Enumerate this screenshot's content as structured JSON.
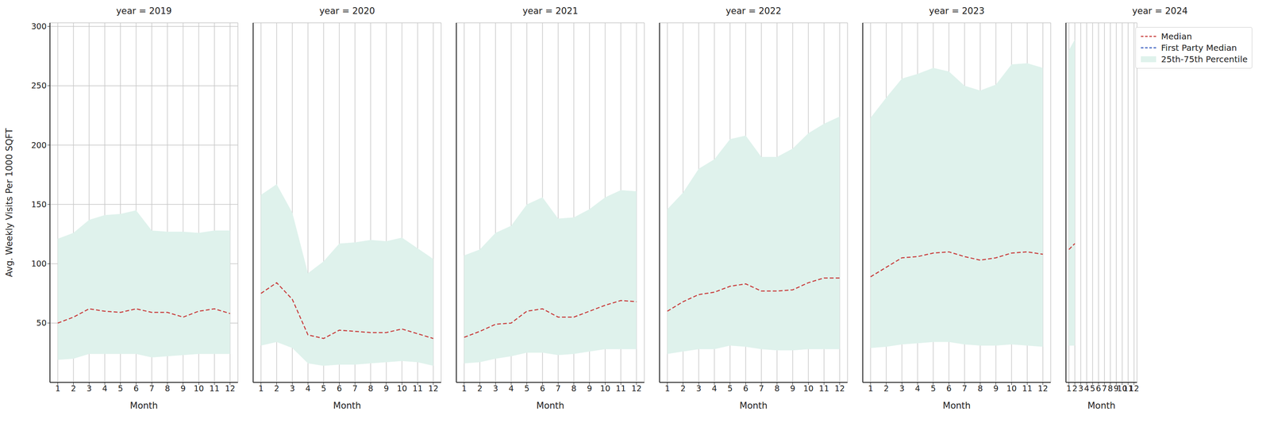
{
  "chart_data": [
    {
      "type": "line",
      "title": "year = 2019",
      "x_label": "Month",
      "y_label": "Avg. Weekly Visits Per 1000 SQFT",
      "x": [
        1,
        2,
        3,
        4,
        5,
        6,
        7,
        8,
        9,
        10,
        11,
        12
      ],
      "xlim": [
        0.5,
        12.5
      ],
      "xticks": [
        1,
        2,
        3,
        4,
        5,
        6,
        7,
        8,
        9,
        10,
        11,
        12
      ],
      "ylim": [
        0,
        303
      ],
      "yticks": [
        50,
        100,
        150,
        200,
        250,
        300
      ],
      "grid": true,
      "series": [
        {
          "name": "Median",
          "type": "line",
          "color": "#c9403f",
          "line_style": "dashed",
          "values": [
            50,
            55,
            62,
            60,
            59,
            62,
            59,
            59,
            55,
            60,
            62,
            58
          ]
        },
        {
          "name": "First Party Median",
          "type": "line",
          "color": "#3b5fc0",
          "line_style": "dashed",
          "values": [
            null,
            null,
            null,
            null,
            null,
            null,
            null,
            null,
            null,
            null,
            null,
            null
          ]
        },
        {
          "name": "25th-75th Percentile",
          "type": "area",
          "color": "#dff2ec",
          "lower": [
            19,
            20,
            24,
            24,
            24,
            24,
            21,
            22,
            23,
            24,
            24,
            24
          ],
          "upper": [
            121,
            126,
            137,
            141,
            142,
            145,
            128,
            127,
            127,
            126,
            128,
            128
          ]
        }
      ]
    },
    {
      "type": "line",
      "title": "year = 2020",
      "x_label": "Month",
      "x": [
        1,
        2,
        3,
        4,
        5,
        6,
        7,
        8,
        9,
        10,
        11,
        12
      ],
      "xlim": [
        0.5,
        12.5
      ],
      "xticks": [
        1,
        2,
        3,
        4,
        5,
        6,
        7,
        8,
        9,
        10,
        11,
        12
      ],
      "ylim": [
        0,
        303
      ],
      "yticks": [
        50,
        100,
        150,
        200,
        250,
        300
      ],
      "grid": true,
      "tick_labels": "x",
      "series": [
        {
          "name": "Median",
          "type": "line",
          "color": "#c9403f",
          "line_style": "dashed",
          "values": [
            75,
            84,
            70,
            40,
            37,
            44,
            43,
            42,
            42,
            45,
            41,
            37
          ]
        },
        {
          "name": "First Party Median",
          "type": "line",
          "color": "#3b5fc0",
          "line_style": "dashed",
          "values": [
            null,
            null,
            null,
            null,
            null,
            null,
            null,
            null,
            null,
            null,
            null,
            null
          ]
        },
        {
          "name": "25th-75th Percentile",
          "type": "area",
          "color": "#dff2ec",
          "lower": [
            31,
            34,
            29,
            16,
            14,
            15,
            15,
            16,
            17,
            18,
            17,
            14
          ],
          "upper": [
            158,
            167,
            143,
            92,
            102,
            117,
            118,
            120,
            119,
            122,
            113,
            104
          ]
        }
      ]
    },
    {
      "type": "line",
      "title": "year = 2021",
      "x_label": "Month",
      "x": [
        1,
        2,
        3,
        4,
        5,
        6,
        7,
        8,
        9,
        10,
        11,
        12
      ],
      "xlim": [
        0.5,
        12.5
      ],
      "xticks": [
        1,
        2,
        3,
        4,
        5,
        6,
        7,
        8,
        9,
        10,
        11,
        12
      ],
      "ylim": [
        0,
        303
      ],
      "yticks": [
        50,
        100,
        150,
        200,
        250,
        300
      ],
      "grid": true,
      "tick_labels": "x",
      "series": [
        {
          "name": "Median",
          "type": "line",
          "color": "#c9403f",
          "line_style": "dashed",
          "values": [
            38,
            43,
            49,
            50,
            60,
            62,
            55,
            55,
            60,
            65,
            69,
            68
          ]
        },
        {
          "name": "First Party Median",
          "type": "line",
          "color": "#3b5fc0",
          "line_style": "dashed",
          "values": [
            null,
            null,
            null,
            null,
            null,
            null,
            null,
            null,
            null,
            null,
            null,
            null
          ]
        },
        {
          "name": "25th-75th Percentile",
          "type": "area",
          "color": "#dff2ec",
          "lower": [
            16,
            17,
            20,
            22,
            25,
            25,
            23,
            24,
            26,
            28,
            28,
            28
          ],
          "upper": [
            107,
            112,
            126,
            132,
            150,
            156,
            138,
            139,
            146,
            156,
            162,
            161
          ]
        }
      ]
    },
    {
      "type": "line",
      "title": "year = 2022",
      "x_label": "Month",
      "x": [
        1,
        2,
        3,
        4,
        5,
        6,
        7,
        8,
        9,
        10,
        11,
        12
      ],
      "xlim": [
        0.5,
        12.5
      ],
      "xticks": [
        1,
        2,
        3,
        4,
        5,
        6,
        7,
        8,
        9,
        10,
        11,
        12
      ],
      "ylim": [
        0,
        303
      ],
      "yticks": [
        50,
        100,
        150,
        200,
        250,
        300
      ],
      "grid": true,
      "tick_labels": "x",
      "series": [
        {
          "name": "Median",
          "type": "line",
          "color": "#c9403f",
          "line_style": "dashed",
          "values": [
            60,
            68,
            74,
            76,
            81,
            83,
            77,
            77,
            78,
            84,
            88,
            88
          ]
        },
        {
          "name": "First Party Median",
          "type": "line",
          "color": "#3b5fc0",
          "line_style": "dashed",
          "values": [
            null,
            null,
            null,
            null,
            null,
            null,
            null,
            null,
            null,
            null,
            null,
            null
          ]
        },
        {
          "name": "25th-75th Percentile",
          "type": "area",
          "color": "#dff2ec",
          "lower": [
            24,
            26,
            28,
            28,
            31,
            30,
            28,
            27,
            27,
            28,
            28,
            28
          ],
          "upper": [
            146,
            160,
            180,
            188,
            205,
            208,
            190,
            190,
            197,
            210,
            218,
            224
          ]
        }
      ]
    },
    {
      "type": "line",
      "title": "year = 2023",
      "x_label": "Month",
      "x": [
        1,
        2,
        3,
        4,
        5,
        6,
        7,
        8,
        9,
        10,
        11,
        12
      ],
      "xlim": [
        0.5,
        12.5
      ],
      "xticks": [
        1,
        2,
        3,
        4,
        5,
        6,
        7,
        8,
        9,
        10,
        11,
        12
      ],
      "ylim": [
        0,
        303
      ],
      "yticks": [
        50,
        100,
        150,
        200,
        250,
        300
      ],
      "grid": true,
      "tick_labels": "x",
      "series": [
        {
          "name": "Median",
          "type": "line",
          "color": "#c9403f",
          "line_style": "dashed",
          "values": [
            89,
            97,
            105,
            106,
            109,
            110,
            106,
            103,
            105,
            109,
            110,
            108
          ]
        },
        {
          "name": "First Party Median",
          "type": "line",
          "color": "#3b5fc0",
          "line_style": "dashed",
          "values": [
            null,
            null,
            null,
            null,
            null,
            null,
            null,
            null,
            null,
            null,
            null,
            null
          ]
        },
        {
          "name": "25th-75th Percentile",
          "type": "area",
          "color": "#dff2ec",
          "lower": [
            29,
            30,
            32,
            33,
            34,
            34,
            32,
            31,
            31,
            32,
            31,
            30
          ],
          "upper": [
            223,
            240,
            256,
            260,
            265,
            262,
            250,
            246,
            251,
            268,
            269,
            265
          ]
        }
      ]
    },
    {
      "type": "line",
      "title": "year = 2024",
      "x_label": "Month",
      "x": [
        1,
        2,
        3,
        4,
        5,
        6,
        7,
        8,
        9,
        10,
        11,
        12
      ],
      "xlim": [
        0.5,
        12.5
      ],
      "xticks": [
        1,
        2,
        3,
        4,
        5,
        6,
        7,
        8,
        9,
        10,
        11,
        12
      ],
      "ylim": [
        0,
        303
      ],
      "yticks": [
        50,
        100,
        150,
        200,
        250,
        300
      ],
      "grid": true,
      "tick_labels": "x",
      "legend": "upper right",
      "series": [
        {
          "name": "Median",
          "type": "line",
          "color": "#c9403f",
          "line_style": "dashed",
          "values": [
            112,
            117,
            null,
            null,
            null,
            null,
            null,
            null,
            null,
            null,
            null,
            null
          ]
        },
        {
          "name": "First Party Median",
          "type": "line",
          "color": "#3b5fc0",
          "line_style": "dashed",
          "values": [
            null,
            null,
            null,
            null,
            null,
            null,
            null,
            null,
            null,
            null,
            null,
            null
          ]
        },
        {
          "name": "25th-75th Percentile",
          "type": "area",
          "color": "#dff2ec",
          "lower": [
            31,
            31,
            null,
            null,
            null,
            null,
            null,
            null,
            null,
            null,
            null,
            null
          ],
          "upper": [
            280,
            289,
            null,
            null,
            null,
            null,
            null,
            null,
            null,
            null,
            null,
            null
          ]
        }
      ]
    }
  ]
}
